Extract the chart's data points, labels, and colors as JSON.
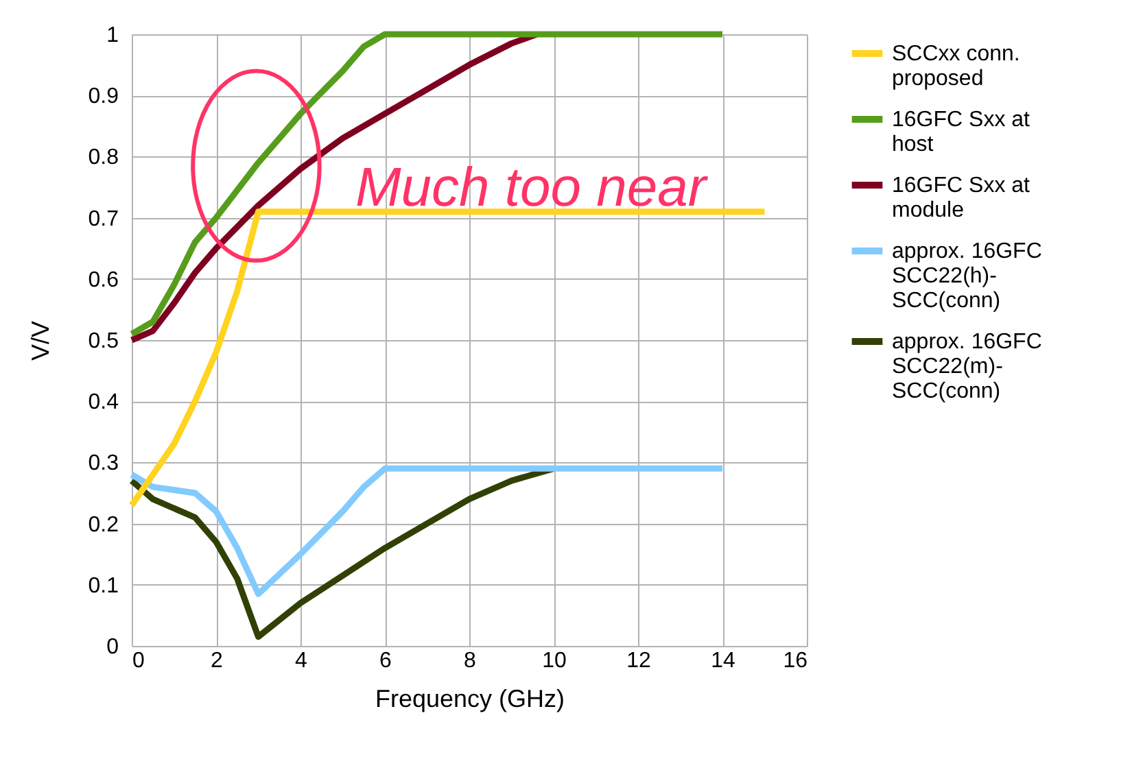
{
  "chart_data": {
    "type": "line",
    "xlabel": "Frequency (GHz)",
    "ylabel": "V/V",
    "xlim": [
      0,
      16
    ],
    "xticks": [
      0,
      2,
      4,
      6,
      8,
      10,
      12,
      14,
      16
    ],
    "ylim": [
      0,
      1
    ],
    "yticks": [
      0,
      0.1,
      0.2,
      0.3,
      0.4,
      0.5,
      0.6,
      0.7,
      0.8,
      0.9,
      1
    ],
    "grid": true,
    "legend": "right",
    "line_style": "solid",
    "marker": "none",
    "annotations": [
      "Much too near"
    ],
    "series": [
      {
        "name": "SCCxx conn. proposed",
        "color": "#ffd320",
        "x": [
          0,
          0.5,
          1,
          1.5,
          2,
          2.5,
          3,
          15
        ],
        "values": [
          0.23,
          0.28,
          0.33,
          0.4,
          0.48,
          0.58,
          0.71,
          0.71
        ]
      },
      {
        "name": "16GFC Sxx at host",
        "color": "#579d1c",
        "x": [
          0,
          0.5,
          1,
          1.5,
          2,
          3,
          4,
          5,
          5.5,
          6,
          14
        ],
        "values": [
          0.51,
          0.53,
          0.59,
          0.66,
          0.7,
          0.79,
          0.87,
          0.94,
          0.98,
          1,
          1
        ]
      },
      {
        "name": "16GFC Sxx at module",
        "color": "#7e0021",
        "x": [
          0,
          0.5,
          1,
          1.5,
          2,
          3,
          4,
          5,
          6,
          7,
          8,
          9,
          9.6
        ],
        "values": [
          0.5,
          0.515,
          0.56,
          0.61,
          0.65,
          0.72,
          0.78,
          0.83,
          0.87,
          0.91,
          0.95,
          0.985,
          1
        ]
      },
      {
        "name": "approx. 16GFC SCC22(h)-SCC(conn)",
        "color": "#83caff",
        "x": [
          0,
          0.5,
          1.5,
          2,
          2.5,
          3,
          4,
          5,
          5.5,
          6,
          14
        ],
        "values": [
          0.28,
          0.26,
          0.25,
          0.22,
          0.16,
          0.085,
          0.15,
          0.22,
          0.26,
          0.29,
          0.29
        ]
      },
      {
        "name": "approx. 16GFC SCC22(m)-SCC(conn)",
        "color": "#314004",
        "x": [
          0,
          0.5,
          1.5,
          2,
          2.5,
          3,
          4,
          6,
          8,
          9,
          10
        ],
        "values": [
          0.27,
          0.24,
          0.21,
          0.17,
          0.11,
          0.015,
          0.07,
          0.16,
          0.24,
          0.27,
          0.29
        ]
      }
    ]
  }
}
